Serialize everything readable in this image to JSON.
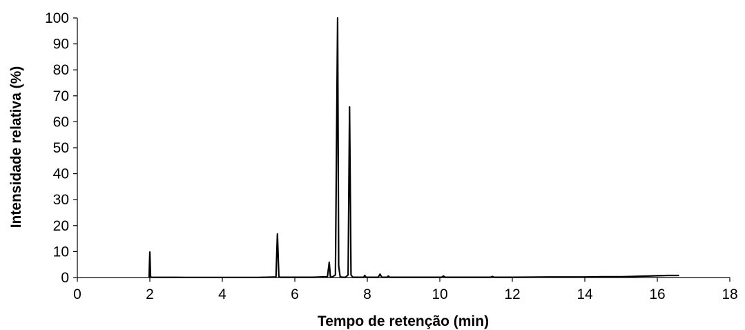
{
  "chart_data": {
    "type": "line",
    "title": "",
    "xlabel": "Tempo de retenção (min)",
    "ylabel": "Intensidade relativa (%)",
    "xlim": [
      0,
      18
    ],
    "ylim": [
      0,
      100
    ],
    "xticks": [
      0,
      2,
      4,
      6,
      8,
      10,
      12,
      14,
      16,
      18
    ],
    "yticks": [
      0,
      10,
      20,
      30,
      40,
      50,
      60,
      70,
      80,
      90,
      100
    ],
    "grid": false,
    "legend": "none",
    "line_color": "#000000",
    "series": [
      {
        "x": [
          1.98,
          2.0,
          2.02,
          2.05,
          3.0,
          4.0,
          5.0,
          5.48,
          5.52,
          5.56,
          5.6,
          6.0,
          6.5,
          6.9,
          6.95,
          6.98,
          7.02,
          7.12,
          7.18,
          7.21,
          7.25,
          7.3,
          7.4,
          7.47,
          7.51,
          7.55,
          7.6,
          7.7,
          7.9,
          7.93,
          7.96,
          8.3,
          8.35,
          8.4,
          8.55,
          8.58,
          8.61,
          9.0,
          10.05,
          10.1,
          10.15,
          11.0,
          11.4,
          11.45,
          11.5,
          12.0,
          13.0,
          14.0,
          14.5,
          15.0,
          15.3,
          15.5,
          15.8,
          16.0,
          16.3,
          16.6
        ],
        "y": [
          0,
          9.8,
          0.3,
          0.1,
          0.05,
          0.05,
          0.05,
          0.2,
          16.8,
          0.3,
          0.1,
          0.1,
          0.1,
          0.3,
          5.9,
          0.4,
          0.1,
          1.0,
          100,
          4.5,
          0.3,
          0.1,
          0.1,
          1.0,
          65.7,
          1.0,
          0.1,
          0.1,
          0.1,
          0.8,
          0.1,
          0.1,
          1.3,
          0.1,
          0.1,
          0.6,
          0.1,
          0.1,
          0.1,
          0.6,
          0.1,
          0.1,
          0.1,
          0.4,
          0.1,
          0.1,
          0.2,
          0.2,
          0.3,
          0.3,
          0.4,
          0.5,
          0.6,
          0.7,
          0.8,
          0.8
        ]
      }
    ]
  }
}
